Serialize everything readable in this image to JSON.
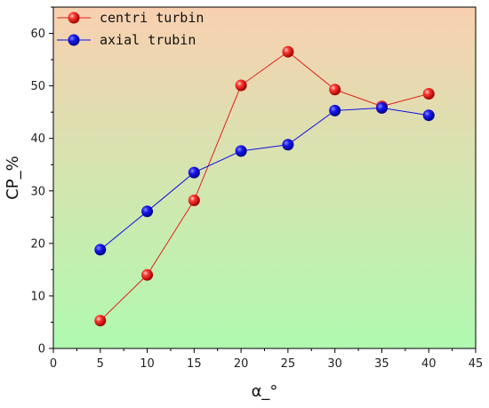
{
  "chart_data": {
    "type": "line",
    "xlabel": "α_°",
    "ylabel": "CP_%",
    "xlim": [
      0,
      45
    ],
    "ylim": [
      0,
      65
    ],
    "x_ticks": [
      0,
      5,
      10,
      15,
      20,
      25,
      30,
      35,
      40,
      45
    ],
    "y_ticks": [
      0,
      10,
      20,
      30,
      40,
      50,
      60
    ],
    "x_tick_labels": [
      "0",
      "5",
      "10",
      "15",
      "20",
      "25",
      "30",
      "35",
      "40",
      "45"
    ],
    "y_tick_labels": [
      "0",
      "10",
      "20",
      "30",
      "40",
      "50",
      "60"
    ],
    "grid": false,
    "legend_position": "top-left",
    "background_gradient": [
      "#f8d0b0",
      "#b0fab0"
    ],
    "series": [
      {
        "name": "centri turbin",
        "color": "#e0201c",
        "x": [
          5,
          10,
          15,
          20,
          25,
          30,
          35,
          40
        ],
        "y": [
          5.3,
          14.0,
          28.2,
          50.1,
          56.5,
          49.3,
          46.1,
          48.5
        ]
      },
      {
        "name": "axial trubin",
        "color": "#1010e0",
        "x": [
          5,
          10,
          15,
          20,
          25,
          30,
          35,
          40
        ],
        "y": [
          18.8,
          26.1,
          33.5,
          37.6,
          38.8,
          45.3,
          45.8,
          44.4
        ]
      }
    ]
  }
}
